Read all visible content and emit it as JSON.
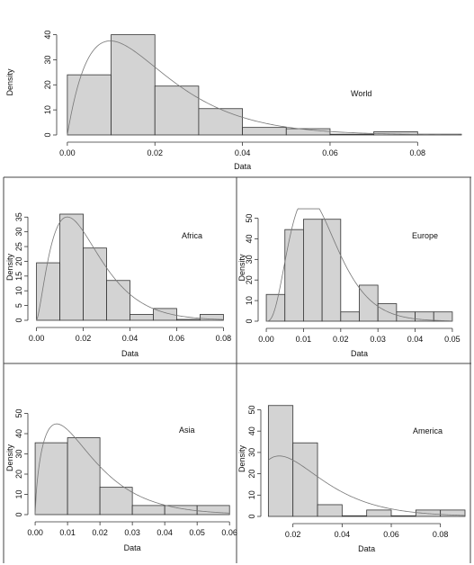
{
  "chart_data": [
    {
      "type": "histogram",
      "annotation": "World",
      "xlabel": "Data",
      "ylabel": "Density",
      "bin_edges": [
        0.0,
        0.01,
        0.02,
        0.03,
        0.04,
        0.05,
        0.06,
        0.07,
        0.08,
        0.09
      ],
      "values": [
        24,
        40,
        19.5,
        10.5,
        3,
        2.5,
        0.3,
        1.3,
        0.3
      ],
      "xlim": [
        -0.001,
        0.09
      ],
      "ylim": [
        0,
        42
      ],
      "xticks": [
        0.0,
        0.02,
        0.04,
        0.06,
        0.08
      ],
      "xtick_labels": [
        "0.00",
        "0.02",
        "0.04",
        "0.06",
        "0.08"
      ],
      "yticks": [
        0,
        10,
        20,
        30,
        40
      ],
      "ytick_labels": [
        "0",
        "10",
        "20",
        "30",
        "40"
      ],
      "density_curve": {
        "shape": 2.0,
        "scale": 0.0098
      }
    },
    {
      "type": "histogram",
      "annotation": "Africa",
      "xlabel": "Data",
      "ylabel": "Density",
      "bin_edges": [
        0.0,
        0.01,
        0.02,
        0.03,
        0.04,
        0.05,
        0.06,
        0.07,
        0.08
      ],
      "values": [
        19.5,
        36,
        24.5,
        13.5,
        2,
        4,
        0.3,
        2
      ],
      "xlim": [
        -0.001,
        0.081
      ],
      "ylim": [
        0,
        36
      ],
      "xticks": [
        0.0,
        0.02,
        0.04,
        0.06,
        0.08
      ],
      "xtick_labels": [
        "0.00",
        "0.02",
        "0.04",
        "0.06",
        "0.08"
      ],
      "yticks": [
        0,
        5,
        10,
        15,
        20,
        25,
        30,
        35
      ],
      "ytick_labels": [
        "0",
        "5",
        "10",
        "15",
        "20",
        "25",
        "30",
        "35"
      ],
      "density_curve": {
        "shape": 2.5,
        "scale": 0.0088
      }
    },
    {
      "type": "histogram",
      "annotation": "Europe",
      "xlabel": "Data",
      "ylabel": "Density",
      "bin_edges": [
        0.0,
        0.005,
        0.01,
        0.015,
        0.02,
        0.025,
        0.03,
        0.035,
        0.04,
        0.045,
        0.05
      ],
      "values": [
        13,
        44.5,
        49.5,
        49.5,
        4.5,
        17.5,
        8.5,
        4.5,
        4.5,
        4.5
      ],
      "xlim": [
        -0.0005,
        0.0505
      ],
      "ylim": [
        0,
        52
      ],
      "xticks": [
        0.0,
        0.01,
        0.02,
        0.03,
        0.04,
        0.05
      ],
      "xtick_labels": [
        "0.00",
        "0.01",
        "0.02",
        "0.03",
        "0.04",
        "0.05"
      ],
      "yticks": [
        0,
        10,
        20,
        30,
        40,
        50
      ],
      "ytick_labels": [
        "0",
        "10",
        "20",
        "30",
        "40",
        "50"
      ],
      "density_curve": {
        "shape": 4.0,
        "scale": 0.0037
      }
    },
    {
      "type": "histogram",
      "annotation": "Asia",
      "xlabel": "Data",
      "ylabel": "Density",
      "bin_edges": [
        0.0,
        0.01,
        0.02,
        0.03,
        0.04,
        0.05,
        0.06
      ],
      "values": [
        35.5,
        38,
        13.5,
        4.5,
        4.5,
        4.5
      ],
      "xlim": [
        -0.0003,
        0.0605
      ],
      "ylim": [
        0,
        56
      ],
      "xticks": [
        0.0,
        0.01,
        0.02,
        0.03,
        0.04,
        0.05,
        0.06
      ],
      "xtick_labels": [
        "0.00",
        "0.01",
        "0.02",
        "0.03",
        "0.04",
        "0.05",
        "0.06"
      ],
      "yticks": [
        0,
        10,
        20,
        30,
        40,
        50
      ],
      "ytick_labels": [
        "0",
        "10",
        "20",
        "30",
        "40",
        "50"
      ],
      "density_curve": {
        "shape": 1.7,
        "scale": 0.0095
      }
    },
    {
      "type": "histogram",
      "annotation": "America",
      "xlabel": "Data",
      "ylabel": "Density",
      "bin_edges": [
        0.01,
        0.02,
        0.03,
        0.04,
        0.05,
        0.06,
        0.07,
        0.08,
        0.09
      ],
      "values": [
        52,
        34.5,
        5.5,
        0.3,
        3,
        0.3,
        3,
        3
      ],
      "xlim": [
        0.0095,
        0.09
      ],
      "ylim": [
        0,
        54
      ],
      "xticks": [
        0.02,
        0.04,
        0.06,
        0.08
      ],
      "xtick_labels": [
        "0.02",
        "0.04",
        "0.06",
        "0.08"
      ],
      "yticks": [
        0,
        10,
        20,
        30,
        40,
        50
      ],
      "ytick_labels": [
        "0",
        "10",
        "20",
        "30",
        "40",
        "50"
      ],
      "density_curve": {
        "shape": 2.2,
        "scale": 0.012
      }
    }
  ]
}
